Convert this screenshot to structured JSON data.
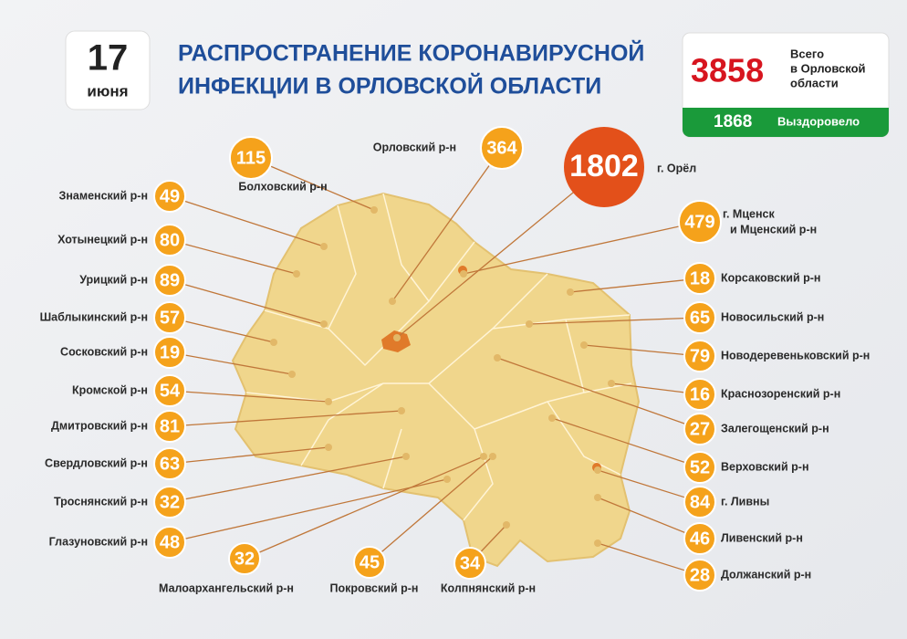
{
  "date": {
    "day": "17",
    "month": "июня"
  },
  "title": [
    "РАСПРОСТРАНЕНИЕ КОРОНАВИРУСНОЙ",
    "ИНФЕКЦИИ В ОРЛОВСКОЙ ОБЛАСТИ"
  ],
  "total": {
    "value": "3858",
    "label": [
      "Всего",
      "в Орловской",
      "области"
    ]
  },
  "recovered": {
    "value": "1868",
    "label": "Выздоровело"
  },
  "regions": [
    {
      "name": "Знаменский р-н",
      "value": "49"
    },
    {
      "name": "Хотынецкий р-н",
      "value": "80"
    },
    {
      "name": "Урицкий р-н",
      "value": "89"
    },
    {
      "name": "Шаблыкинский р-н",
      "value": "57"
    },
    {
      "name": "Сосковский р-н",
      "value": "19"
    },
    {
      "name": "Кромской р-н",
      "value": "54"
    },
    {
      "name": "Дмитровский р-н",
      "value": "81"
    },
    {
      "name": "Свердловский р-н",
      "value": "63"
    },
    {
      "name": "Троснянский р-н",
      "value": "32"
    },
    {
      "name": "Глазуновский р-н",
      "value": "48"
    },
    {
      "name": "Малоархангельский р-н",
      "value": "32"
    },
    {
      "name": "Покровский р-н",
      "value": "45"
    },
    {
      "name": "Колпнянский р-н",
      "value": "34"
    },
    {
      "name": "Болховский р-н",
      "value": "115"
    },
    {
      "name": "Орловский р-н",
      "value": "364"
    },
    {
      "name": "г. Орёл",
      "value": "1802"
    },
    {
      "name": [
        "г. Мценск",
        "и Мценский р-н"
      ],
      "value": "479"
    },
    {
      "name": "Корсаковский р-н",
      "value": "18"
    },
    {
      "name": "Новосильский р-н",
      "value": "65"
    },
    {
      "name": "Новодеревеньковский р-н",
      "value": "79"
    },
    {
      "name": "Краснозоренский р-н",
      "value": "16"
    },
    {
      "name": "Залегощенский р-н",
      "value": "27"
    },
    {
      "name": "Верховский р-н",
      "value": "52"
    },
    {
      "name": "г. Ливны",
      "value": "84"
    },
    {
      "name": "Ливенский р-н",
      "value": "46"
    },
    {
      "name": "Должанский р-н",
      "value": "28"
    }
  ]
}
